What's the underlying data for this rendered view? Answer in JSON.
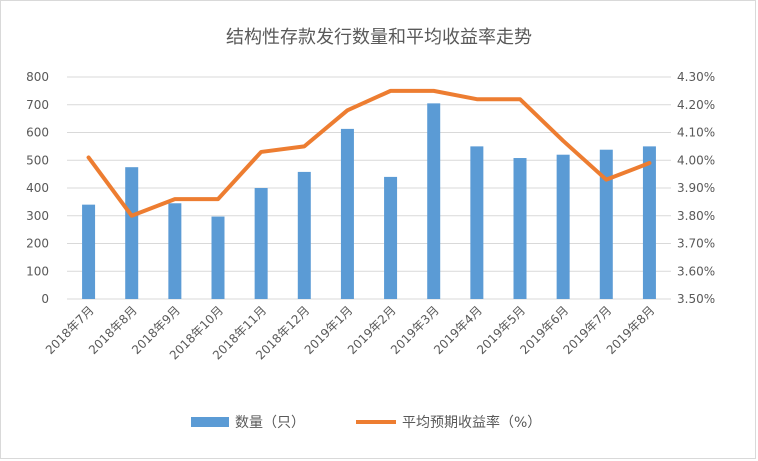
{
  "chart_data": {
    "type": "bar+line",
    "title": "结构性存款发行数量和平均收益率走势",
    "categories": [
      "2018年7月",
      "2018年8月",
      "2018年9月",
      "2018年10月",
      "2018年11月",
      "2018年12月",
      "2019年1月",
      "2019年2月",
      "2019年3月",
      "2019年4月",
      "2019年5月",
      "2019年6月",
      "2019年7月",
      "2019年8月"
    ],
    "series": [
      {
        "name": "数量（只）",
        "type": "bar",
        "axis": "left",
        "color": "#5b9bd5",
        "values": [
          340,
          475,
          345,
          297,
          400,
          458,
          613,
          440,
          705,
          550,
          508,
          520,
          538,
          550
        ]
      },
      {
        "name": "平均预期收益率（%）",
        "type": "line",
        "axis": "right",
        "color": "#ed7d31",
        "values": [
          4.01,
          3.8,
          3.86,
          3.86,
          4.03,
          4.05,
          4.18,
          4.25,
          4.25,
          4.22,
          4.22,
          4.07,
          3.93,
          3.99
        ]
      }
    ],
    "y_left": {
      "min": 0,
      "max": 800,
      "ticks": [
        "0",
        "100",
        "200",
        "300",
        "400",
        "500",
        "600",
        "700",
        "800"
      ]
    },
    "y_right": {
      "min": 3.5,
      "max": 4.3,
      "ticks": [
        "3.50%",
        "3.60%",
        "3.70%",
        "3.80%",
        "3.90%",
        "4.00%",
        "4.10%",
        "4.20%",
        "4.30%"
      ]
    },
    "grid": true,
    "legend": "bottom"
  }
}
